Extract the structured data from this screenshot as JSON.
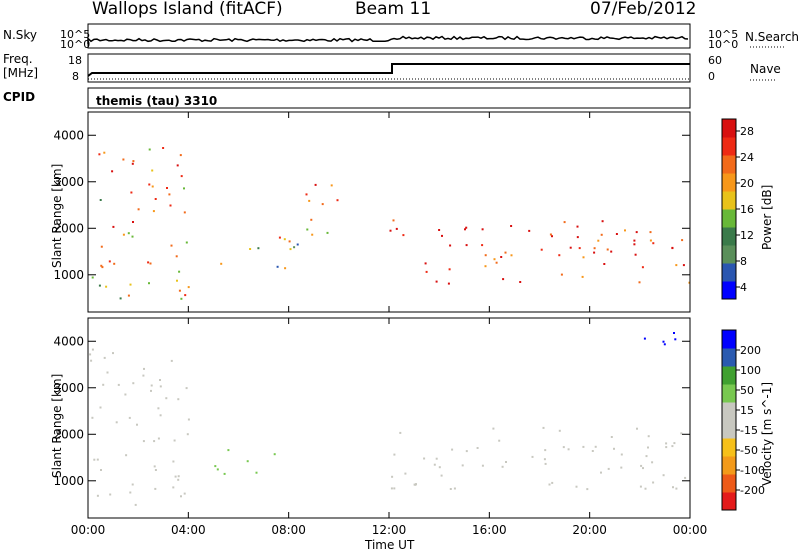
{
  "header": {
    "site": "Wallops Island (fitACF)",
    "beam": "Beam 11",
    "date": "07/Feb/2012"
  },
  "strip_labels": {
    "nsky": "N.Sky",
    "nsky_ticks": [
      "10^5",
      "10^0"
    ],
    "nsearch": "N.Search",
    "nsearch_ticks": [
      "10^5",
      "10^0"
    ],
    "freq_label": "Freq.",
    "freq_unit": "[MHz]",
    "freq_ticks": [
      "18",
      "8"
    ],
    "nave": "Nave",
    "nave_ticks": [
      "60",
      "0"
    ],
    "cpid": "CPID",
    "cpid_value": "themis (tau) 3310"
  },
  "colors": {
    "power_scale": [
      "#0000ff",
      "#2a56b0",
      "#5a8f5a",
      "#3a7a4a",
      "#68b838",
      "#e8c21a",
      "#f7971a",
      "#f26a1a",
      "#ee2a14",
      "#d81010"
    ],
    "velocity_scale": [
      "#e41a1a",
      "#ee5a18",
      "#f39a1a",
      "#f6c01a",
      "#c8c8c0",
      "#c8c8c0",
      "#78c850",
      "#40a030",
      "#2a5ab0",
      "#0000ff"
    ]
  },
  "chart_data": [
    {
      "type": "heatmap",
      "name": "power",
      "xlabel": "",
      "ylabel": "Slant Range [km]",
      "x_ticks": [
        "00:00",
        "04:00",
        "08:00",
        "12:00",
        "16:00",
        "20:00",
        "00:00"
      ],
      "y_ticks": [
        1000,
        2000,
        3000,
        4000
      ],
      "ylim": [
        200,
        4500
      ],
      "colorbar_label": "Power [dB]",
      "colorbar_ticks": [
        4,
        8,
        12,
        16,
        20,
        24,
        28
      ],
      "echo_bands": [
        {
          "t_start": 0.0,
          "t_end": 4.0,
          "r_low": 500,
          "r_high": 3900,
          "value": 20
        },
        {
          "t_start": 5.0,
          "t_end": 8.5,
          "r_low": 1100,
          "r_high": 1700,
          "value": 14
        },
        {
          "t_start": 7.5,
          "t_end": 10.0,
          "r_low": 1700,
          "r_high": 3000,
          "value": 22
        },
        {
          "t_start": 12.0,
          "t_end": 24.0,
          "r_low": 800,
          "r_high": 2200,
          "value": 26
        }
      ]
    },
    {
      "type": "heatmap",
      "name": "velocity",
      "xlabel": "Time UT",
      "ylabel": "Slant Range [km]",
      "x_ticks": [
        "00:00",
        "04:00",
        "08:00",
        "12:00",
        "16:00",
        "20:00",
        "00:00"
      ],
      "y_ticks": [
        1000,
        2000,
        3000,
        4000
      ],
      "ylim": [
        200,
        4500
      ],
      "colorbar_label": "Velocity [m s^-1]",
      "colorbar_ticks": [
        -200,
        -100,
        -50,
        -15,
        15,
        50,
        100,
        200
      ],
      "echo_bands": [
        {
          "t_start": 0.0,
          "t_end": 4.0,
          "r_low": 500,
          "r_high": 3900,
          "value": 0
        },
        {
          "t_start": 5.0,
          "t_end": 8.0,
          "r_low": 1100,
          "r_high": 1700,
          "value": 60
        },
        {
          "t_start": 12.0,
          "t_end": 24.0,
          "r_low": 800,
          "r_high": 2200,
          "value": 0
        },
        {
          "t_start": 21.5,
          "t_end": 23.5,
          "r_low": 3600,
          "r_high": 4300,
          "value": 200
        }
      ]
    }
  ]
}
